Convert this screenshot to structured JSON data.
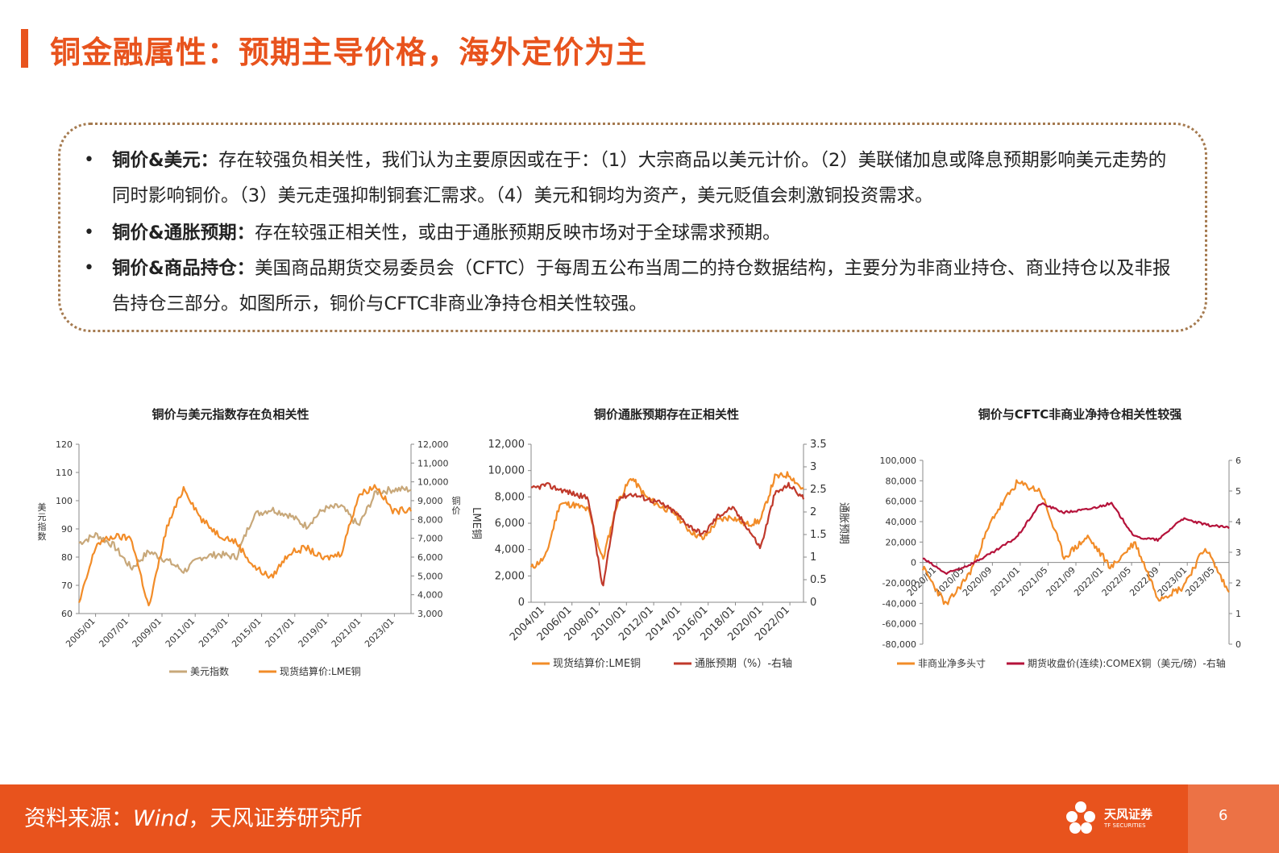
{
  "header": {
    "title": "铜金融属性：预期主导价格，海外定价为主"
  },
  "bullets": [
    {
      "head": "铜价&美元：",
      "text": "存在较强负相关性，我们认为主要原因或在于：（1）大宗商品以美元计价。（2）美联储加息或降息预期影响美元走势的同时影响铜价。（3）美元走强抑制铜套汇需求。（4）美元和铜均为资产，美元贬值会刺激铜投资需求。"
    },
    {
      "head": "铜价&通胀预期：",
      "text": "存在较强正相关性，或由于通胀预期反映市场对于全球需求预期。"
    },
    {
      "head": "铜价&商品持仓：",
      "text": "美国商品期货交易委员会（CFTC）于每周五公布当周二的持仓数据结构，主要分为非商业持仓、商业持仓以及非报告持仓三部分。如图所示，铜价与CFTC非商业净持仓相关性较强。"
    }
  ],
  "chart_data": [
    {
      "type": "line",
      "title": "铜价与美元指数存在负相关性",
      "ylabel": "美元指数",
      "y2label": "铜价",
      "ylim": [
        60,
        120
      ],
      "y2lim": [
        3000,
        12000
      ],
      "yticks": [
        "120",
        "110",
        "100",
        "90",
        "80",
        "70",
        "60"
      ],
      "y2ticks": [
        "12,000",
        "11,000",
        "10,000",
        "9,000",
        "8,000",
        "7,000",
        "6,000",
        "5,000",
        "4,000",
        "3,000"
      ],
      "xticks": [
        "2005/01",
        "2007/01",
        "2009/01",
        "2011/01",
        "2013/01",
        "2015/01",
        "2017/01",
        "2019/01",
        "2021/01",
        "2023/01"
      ],
      "x": [
        2005,
        2006,
        2007,
        2008,
        2009,
        2010,
        2011,
        2012,
        2013,
        2014,
        2015,
        2016,
        2017,
        2018,
        2019,
        2020,
        2021,
        2022,
        2023,
        2024
      ],
      "series": [
        {
          "name": "美元指数",
          "axis": "left",
          "color": "#c8a87a",
          "values": [
            85,
            88,
            84,
            76,
            82,
            79,
            75,
            80,
            81,
            80,
            95,
            97,
            95,
            91,
            97,
            98,
            91,
            103,
            104,
            104
          ]
        },
        {
          "name": "现货结算价:LME铜",
          "axis": "right",
          "color": "#f28c28",
          "values": [
            3500,
            6700,
            7100,
            7000,
            3300,
            7500,
            9700,
            8000,
            7200,
            6800,
            5500,
            4900,
            6200,
            6500,
            5900,
            6200,
            9300,
            9800,
            8400,
            8600
          ]
        }
      ],
      "legend": [
        "美元指数",
        "现货结算价:LME铜"
      ]
    },
    {
      "type": "line",
      "title": "铜价通胀预期存在正相关性",
      "ylabel": "LME铜",
      "y2label": "通胀预期",
      "ylim": [
        0,
        12000
      ],
      "y2lim": [
        0,
        3.5
      ],
      "yticks": [
        "12,000",
        "10,000",
        "8,000",
        "6,000",
        "4,000",
        "2,000",
        "0"
      ],
      "y2ticks": [
        "3.5",
        "3",
        "2.5",
        "2",
        "1.5",
        "1",
        "0.5",
        "0"
      ],
      "xticks": [
        "2004/01",
        "2006/01",
        "2008/01",
        "2010/01",
        "2012/01",
        "2014/01",
        "2016/01",
        "2018/01",
        "2020/01",
        "2022/01"
      ],
      "x": [
        2004,
        2005,
        2006,
        2007,
        2008,
        2009,
        2010,
        2011,
        2012,
        2013,
        2014,
        2015,
        2016,
        2017,
        2018,
        2019,
        2020,
        2021,
        2022,
        2023
      ],
      "series": [
        {
          "name": "现货结算价:LME铜",
          "axis": "left",
          "color": "#f28c28",
          "values": [
            2600,
            3400,
            7500,
            7400,
            7000,
            3200,
            7500,
            9500,
            8000,
            7300,
            6800,
            5500,
            4800,
            6200,
            6500,
            5900,
            6200,
            9500,
            9700,
            8500
          ]
        },
        {
          "name": "通胀预期（%）-右轴",
          "axis": "right",
          "color": "#c0392b",
          "values": [
            2.5,
            2.6,
            2.5,
            2.4,
            2.3,
            0.3,
            2.3,
            2.4,
            2.3,
            2.2,
            2.0,
            1.7,
            1.5,
            1.9,
            2.1,
            1.7,
            1.2,
            2.4,
            2.6,
            2.3
          ]
        }
      ],
      "legend": [
        "现货结算价:LME铜",
        "通胀预期（%）-右轴"
      ]
    },
    {
      "type": "line",
      "title": "铜价与CFTC非商业净持仓相关性较强",
      "ylim": [
        -80000,
        100000
      ],
      "y2lim": [
        0,
        6
      ],
      "yticks": [
        "100,000",
        "80,000",
        "60,000",
        "40,000",
        "20,000",
        "0",
        "-20,000",
        "-40,000",
        "-60,000",
        "-80,000"
      ],
      "y2ticks": [
        "6",
        "5",
        "4",
        "3",
        "2",
        "1",
        "0"
      ],
      "xticks": [
        "2020/01",
        "2020/05",
        "2020/09",
        "2021/01",
        "2021/05",
        "2021/09",
        "2022/01",
        "2022/05",
        "2022/09",
        "2023/01",
        "2023/05"
      ],
      "series": [
        {
          "name": "非商业净多头寸",
          "axis": "left",
          "color": "#f28c28",
          "values": [
            -5000,
            -42000,
            -10000,
            45000,
            78000,
            70000,
            5000,
            25000,
            -5000,
            20000,
            -35000,
            -25000,
            15000,
            -30000
          ]
        },
        {
          "name": "期货收盘价(连续):COMEX铜（美元/磅）-右轴",
          "axis": "right",
          "color": "#b5123a",
          "values": [
            2.8,
            2.3,
            2.6,
            3.0,
            3.5,
            4.6,
            4.3,
            4.4,
            4.6,
            3.5,
            3.4,
            4.1,
            3.9,
            3.8
          ]
        }
      ],
      "legend": [
        "非商业净多头寸",
        "期货收盘价(连续):COMEX铜（美元/磅）-右轴"
      ]
    }
  ],
  "footer": {
    "source_label": "资料来源：",
    "source_wind": "Wind",
    "source_rest": "，天风证券研究所",
    "logo_text": "天风证券",
    "logo_sub": "TF SECURITIES",
    "page_number": "6"
  },
  "colors": {
    "accent": "#e8531d",
    "usd": "#c8a87a",
    "copper": "#f28c28",
    "inflation": "#c0392b",
    "comex": "#b5123a"
  }
}
